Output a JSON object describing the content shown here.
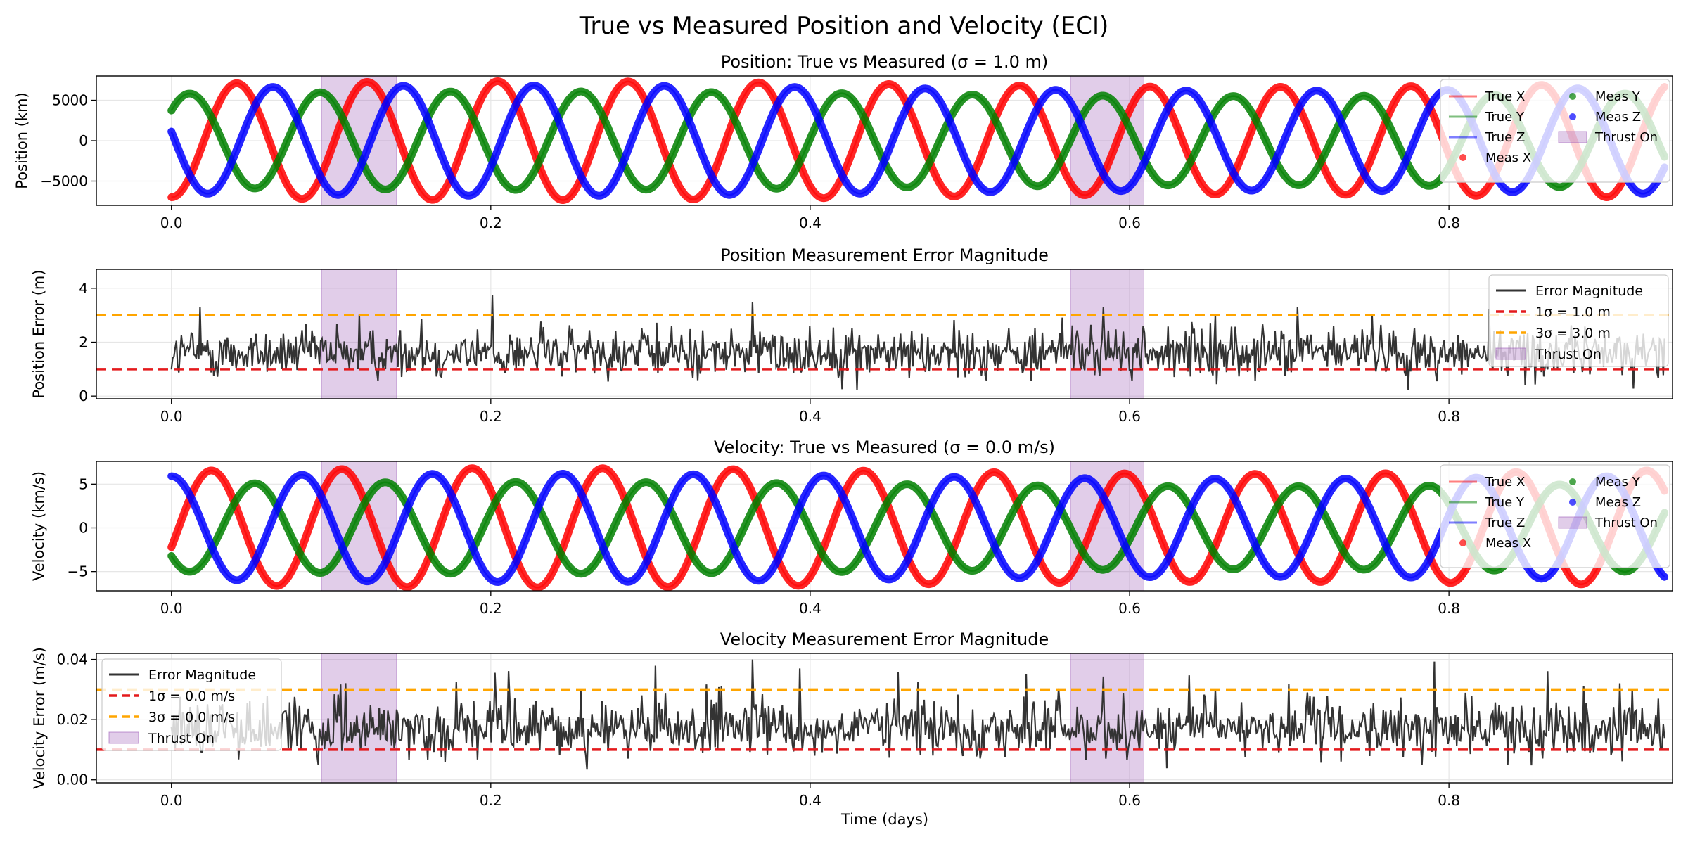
{
  "title": "True vs Measured Position and Velocity (ECI)",
  "xlabel": "Time (days)",
  "colors": {
    "x": "#ff0000",
    "y": "#008000",
    "z": "#0000ff",
    "error": "#333333",
    "one_sigma": "#e41a1c",
    "three_sigma": "#ffa500",
    "thrust": "#9b59b6"
  },
  "chart_data": [
    {
      "type": "line",
      "title": "Position: True vs Measured (σ = 1.0 m)",
      "xlabel": "",
      "ylabel": "Position (km)",
      "xlim": [
        -0.047,
        0.94
      ],
      "ylim": [
        -8000,
        8000
      ],
      "xticks": [
        "0.0",
        "0.2",
        "0.4",
        "0.6",
        "0.8"
      ],
      "yticks": [
        "−5000",
        "0",
        "5000"
      ],
      "ytick_values": [
        -5000,
        0,
        5000
      ],
      "thrust_windows": [
        [
          0.094,
          0.141
        ],
        [
          0.563,
          0.609
        ]
      ],
      "series": [
        {
          "name": "True X",
          "color": "x",
          "amplitude": 7000,
          "period_days": 0.0817,
          "phase_deg": -90
        },
        {
          "name": "True Y",
          "color": "y",
          "amplitude": 5800,
          "period_days": 0.0817,
          "phase_deg": 40
        },
        {
          "name": "True Z",
          "color": "z",
          "amplitude": 6500,
          "period_days": 0.0817,
          "phase_deg": 170
        }
      ],
      "legend": {
        "position": "right",
        "entries": [
          "True X",
          "True Y",
          "True Z",
          "Meas X",
          "Meas Y",
          "Meas Z",
          "Thrust On"
        ]
      },
      "grid": true
    },
    {
      "type": "line",
      "title": "Position Measurement Error Magnitude",
      "xlabel": "",
      "ylabel": "Position Error (m)",
      "xlim": [
        -0.047,
        0.94
      ],
      "ylim": [
        -0.1,
        4.7
      ],
      "xticks": [
        "0.0",
        "0.2",
        "0.4",
        "0.6",
        "0.8"
      ],
      "yticks": [
        "0",
        "2",
        "4"
      ],
      "ytick_values": [
        0,
        2,
        4
      ],
      "thrust_windows": [
        [
          0.094,
          0.141
        ],
        [
          0.563,
          0.609
        ]
      ],
      "hlines": [
        {
          "label": "1σ = 1.0 m",
          "y": 1.0,
          "color": "one_sigma"
        },
        {
          "label": "3σ = 3.0 m",
          "y": 3.0,
          "color": "three_sigma"
        }
      ],
      "noise": {
        "mean": 1.6,
        "spread": 0.6,
        "min": 0.2,
        "max": 4.4
      },
      "legend": {
        "position": "upper right",
        "entries": [
          "Error Magnitude",
          "1σ = 1.0 m",
          "3σ = 3.0 m",
          "Thrust On"
        ]
      },
      "grid": true
    },
    {
      "type": "line",
      "title": "Velocity: True vs Measured (σ = 0.0 m/s)",
      "xlabel": "",
      "ylabel": "Velocity (km/s)",
      "xlim": [
        -0.047,
        0.94
      ],
      "ylim": [
        -7.2,
        7.6
      ],
      "xticks": [
        "0.0",
        "0.2",
        "0.4",
        "0.6",
        "0.8"
      ],
      "yticks": [
        "−5",
        "0",
        "5"
      ],
      "ytick_values": [
        -5,
        0,
        5
      ],
      "thrust_windows": [
        [
          0.094,
          0.141
        ],
        [
          0.563,
          0.609
        ]
      ],
      "series": [
        {
          "name": "True X",
          "color": "x",
          "amplitude": 6.5,
          "period_days": 0.0817,
          "phase_deg": -20
        },
        {
          "name": "True Y",
          "color": "y",
          "amplitude": 5.0,
          "period_days": 0.0817,
          "phase_deg": 220
        },
        {
          "name": "True Z",
          "color": "z",
          "amplitude": 5.9,
          "period_days": 0.0817,
          "phase_deg": 90
        }
      ],
      "legend": {
        "position": "right",
        "entries": [
          "True X",
          "True Y",
          "True Z",
          "Meas X",
          "Meas Y",
          "Meas Z",
          "Thrust On"
        ]
      },
      "grid": true
    },
    {
      "type": "line",
      "title": "Velocity Measurement Error Magnitude",
      "xlabel": "Time (days)",
      "ylabel": "Velocity Error (m/s)",
      "xlim": [
        -0.047,
        0.94
      ],
      "ylim": [
        -0.001,
        0.042
      ],
      "xticks": [
        "0.0",
        "0.2",
        "0.4",
        "0.6",
        "0.8"
      ],
      "yticks": [
        "0.00",
        "0.02",
        "0.04"
      ],
      "ytick_values": [
        0.0,
        0.02,
        0.04
      ],
      "thrust_windows": [
        [
          0.094,
          0.141
        ],
        [
          0.563,
          0.609
        ]
      ],
      "hlines": [
        {
          "label": "1σ = 0.0 m/s",
          "y": 0.01,
          "color": "one_sigma"
        },
        {
          "label": "3σ = 0.0 m/s",
          "y": 0.03,
          "color": "three_sigma"
        }
      ],
      "noise": {
        "mean": 0.017,
        "spread": 0.006,
        "min": 0.002,
        "max": 0.04
      },
      "legend": {
        "position": "upper left",
        "entries": [
          "Error Magnitude",
          "1σ = 0.0 m/s",
          "3σ = 0.0 m/s",
          "Thrust On"
        ]
      },
      "grid": true
    }
  ]
}
